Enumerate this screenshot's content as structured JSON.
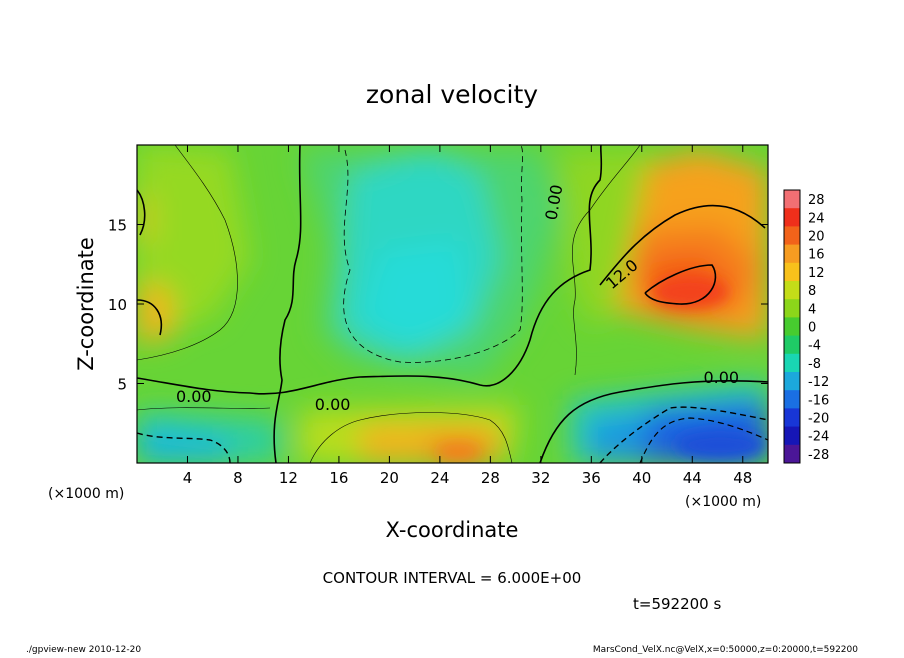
{
  "chart_data": {
    "type": "heatmap",
    "title": "zonal velocity",
    "xlabel": "X-coordinate",
    "ylabel": "Z-coordinate",
    "x_unit_left": "(×1000 m)",
    "x_unit_right": "(×1000 m)",
    "xlim": [
      0,
      50
    ],
    "ylim": [
      0,
      20
    ],
    "x_ticks": [
      4,
      8,
      12,
      16,
      20,
      24,
      28,
      32,
      36,
      40,
      44,
      48
    ],
    "y_ticks": [
      5,
      10,
      15
    ],
    "colorbar_levels": [
      28,
      24,
      20,
      16,
      12,
      8,
      4,
      0,
      -4,
      -8,
      -12,
      -16,
      -20,
      -24,
      -28
    ],
    "colorbar_colors": [
      "#f26f73",
      "#ef2f1b",
      "#f2631a",
      "#f69c21",
      "#f8c11b",
      "#c4dd18",
      "#8cd61a",
      "#47cc2f",
      "#1fcb66",
      "#19d6b3",
      "#1ca8dc",
      "#1a6fe3",
      "#1836d6",
      "#1616b6",
      "#4b1697"
    ],
    "contour_labels": [
      {
        "text": "0.00",
        "x": 4.5,
        "z": 4.2
      },
      {
        "text": "0.00",
        "x": 15.5,
        "z": 3.7
      },
      {
        "text": "0.00",
        "x": 33.0,
        "z": 16.4
      },
      {
        "text": "12.0",
        "x": 38.4,
        "z": 11.9
      },
      {
        "text": "0.00",
        "x": 46.3,
        "z": 5.4
      }
    ],
    "contour_interval_text": "CONTOUR INTERVAL = 6.000E+00",
    "time_text": "t=592200 s"
  },
  "footer": {
    "left": "./gpview-new  2010-12-20",
    "right": "MarsCond_VelX.nc@VelX,x=0:50000,z=0:20000,t=592200"
  }
}
